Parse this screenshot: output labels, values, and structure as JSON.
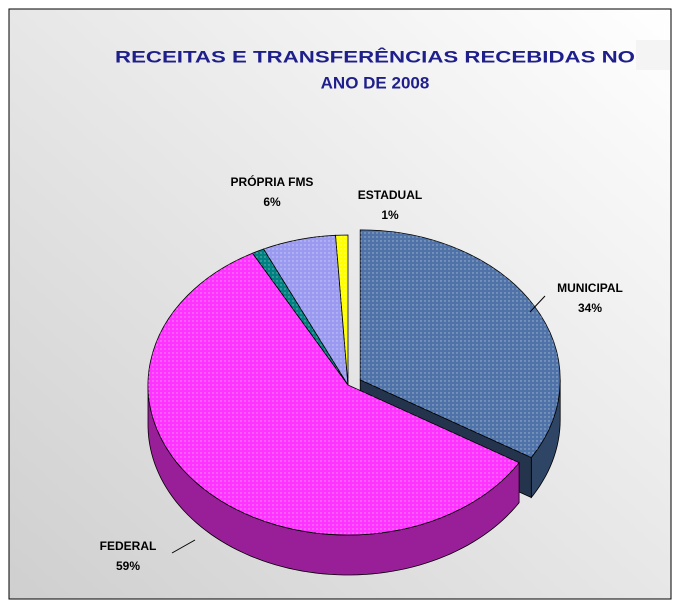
{
  "chart_data": {
    "type": "pie3d",
    "title": [
      "RECEITAS E TRANSFERÊNCIAS RECEBIDAS NO",
      "ANO DE 2008"
    ],
    "categories": [
      "MUNICIPAL",
      "FEDERAL",
      null,
      "PRÓPRIA FMS",
      "ESTADUAL"
    ],
    "values": [
      34,
      59,
      1,
      6,
      1
    ],
    "value_labels": [
      "34%",
      "59%",
      null,
      "6%",
      "1%"
    ],
    "colors": [
      "#4f73a8",
      "#ff33ff",
      "#008080",
      "#9a9af0",
      "#ffff00"
    ]
  }
}
